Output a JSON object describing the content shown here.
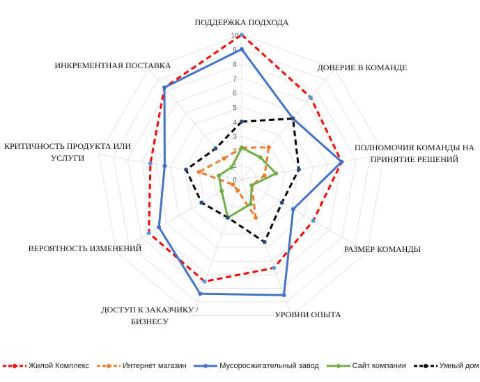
{
  "chart_data": {
    "type": "radar",
    "title": "",
    "categories": [
      [
        "ПОДДЕРЖКА ПОДХОДА"
      ],
      [
        "ДОВЕРИЕ В КОМАНДЕ"
      ],
      [
        "ПОЛНОМОЧИЯ КОМАНДЫ НА",
        "ПРИНЯТИЕ РЕШЕНИЙ"
      ],
      [
        "РАЗМЕР КОМАНДЫ"
      ],
      [
        "УРОВНИ ОПЫТА"
      ],
      [
        "ДОСТУП К ЗАКАЗЧИКУ /",
        "БИЗНЕСУ"
      ],
      [
        "ВЕРОЯТНОСТЬ ИЗМЕНЕНИЙ"
      ],
      [
        "КРИТИЧНОСТЬ ПРОДУКТА ИЛИ",
        "УСЛУГИ"
      ],
      [
        "ИНКРЕМЕНТНАЯ ПОСТАВКА"
      ]
    ],
    "rlim": [
      0,
      10
    ],
    "ticks": [
      "0",
      "1",
      "2",
      "3",
      "4",
      "5",
      "6",
      "7",
      "8",
      "9",
      "10"
    ],
    "grid": true,
    "legend_position": "bottom",
    "series": [
      {
        "name": "Жилой Комплекс",
        "color": "#ff0000",
        "dash": "dashed",
        "values": [
          10,
          7.4,
          7,
          5.7,
          6.5,
          7.5,
          7.4,
          6.4,
          8.3
        ]
      },
      {
        "name": "Интернет магазин",
        "color": "#ed7d31",
        "dash": "dashed",
        "values": [
          2.2,
          2.9,
          1.6,
          0.8,
          2.8,
          0.8,
          0.7,
          3,
          1.9
        ]
      },
      {
        "name": "Мусоросжигательный завод",
        "color": "#4472c4",
        "dash": "solid",
        "values": [
          9,
          5.5,
          7,
          4.1,
          8.5,
          8.4,
          6.6,
          5.4,
          8.3
        ]
      },
      {
        "name": "Сайт компании",
        "color": "#70ad47",
        "dash": "solid",
        "values": [
          2.2,
          2,
          2.4,
          0.8,
          1.8,
          2.8,
          1.6,
          1.6,
          1.1
        ]
      },
      {
        "name": "Умный дом",
        "color": "#000000",
        "dash": "dashed",
        "values": [
          4,
          5.5,
          4,
          3.2,
          4.6,
          2.8,
          3.2,
          3.9,
          2.8
        ]
      }
    ]
  }
}
